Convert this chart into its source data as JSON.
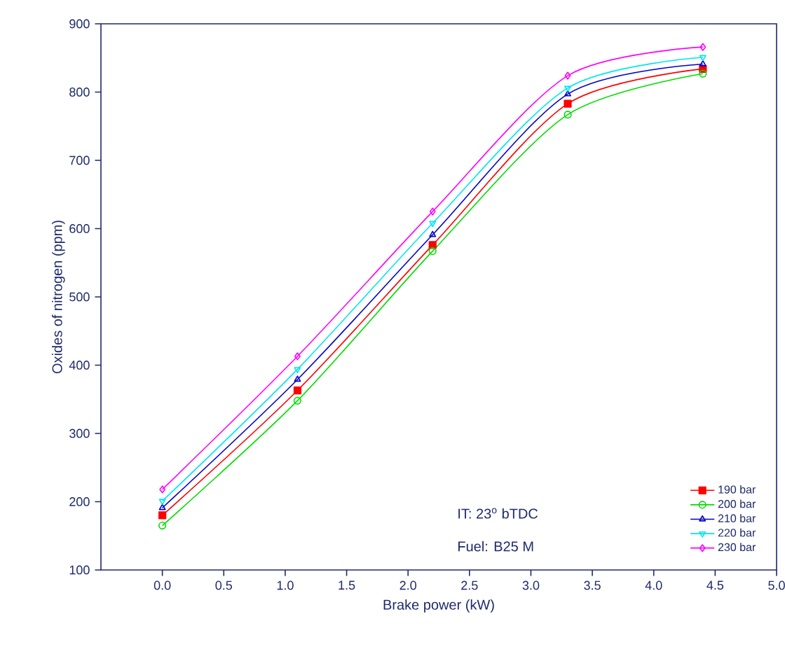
{
  "chart_data": {
    "type": "line",
    "xlabel": "Brake power (kW)",
    "ylabel": "Oxides of nitrogen (ppm)",
    "x": [
      0,
      1.1,
      2.2,
      3.3,
      4.4
    ],
    "series": [
      {
        "name": "190 bar",
        "color": "#ff0000",
        "marker": "square",
        "values": [
          180,
          363,
          576,
          783,
          834
        ]
      },
      {
        "name": "200 bar",
        "color": "#00dd00",
        "marker": "circle",
        "values": [
          165,
          348,
          567,
          767,
          827
        ]
      },
      {
        "name": "210 bar",
        "color": "#0000cc",
        "marker": "triangle",
        "values": [
          191,
          379,
          591,
          797,
          841
        ]
      },
      {
        "name": "220 bar",
        "color": "#00e5ee",
        "marker": "triangle down",
        "values": [
          201,
          394,
          608,
          806,
          851
        ]
      },
      {
        "name": "230 bar",
        "color": "#ff00ff",
        "marker": "diamond",
        "values": [
          218,
          413,
          625,
          824,
          866
        ]
      }
    ],
    "xlim": [
      -0.5,
      5
    ],
    "xticks": [
      {
        "value": 0,
        "label": "0.0"
      },
      0.5,
      {
        "value": 1,
        "label": "1.0"
      },
      1.5,
      {
        "value": 2,
        "label": "2.0"
      },
      2.5,
      {
        "value": 3,
        "label": "3.0"
      },
      3.5,
      {
        "value": 4,
        "label": "4.0"
      },
      4.5,
      {
        "value": 5,
        "label": "5.0"
      }
    ],
    "ylim": [
      100,
      900
    ],
    "yticks": [
      100,
      200,
      300,
      400,
      500,
      600,
      700,
      800,
      900
    ],
    "legend": "bottom right",
    "line_style": "solid",
    "annotations": [
      "IT: 23$^{o}$ bTDC",
      "Fuel: B25 M"
    ]
  }
}
